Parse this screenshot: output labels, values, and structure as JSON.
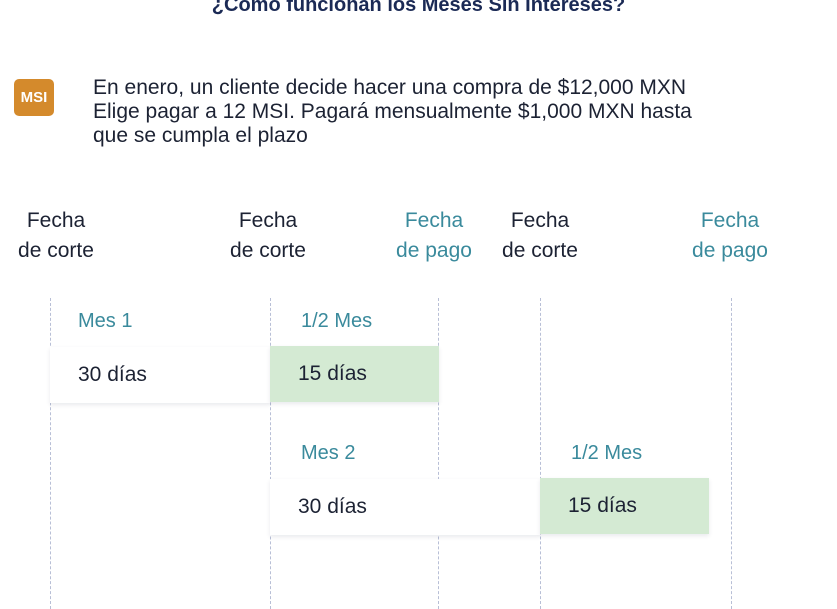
{
  "title": "¿Cómo funcionan los Meses Sin Intereses?",
  "badge": "MSI",
  "intro": [
    "En enero, un cliente decide hacer una compra de $12,000 MXN",
    "Elige pagar a 12 MSI. Pagará mensualmente $1,000 MXN hasta",
    "que se cumpla el plazo"
  ],
  "columns": [
    {
      "line1": "Fecha",
      "line2": "de corte"
    },
    {
      "line1": "Fecha",
      "line2": "de corte"
    },
    {
      "line1": "Fecha",
      "line2": "de pago"
    },
    {
      "line1": "Fecha",
      "line2": "de corte"
    },
    {
      "line1": "Fecha",
      "line2": "de pago"
    }
  ],
  "periods": [
    {
      "label": "Mes 1",
      "days": "30 días"
    },
    {
      "label": "1/2 Mes",
      "days": "15 días"
    },
    {
      "label": "Mes 2",
      "days": "30 días"
    },
    {
      "label": "1/2 Mes",
      "days": "15 días"
    }
  ],
  "colors": {
    "badge": "#d48a2c",
    "pago_text": "#3a8a9c",
    "grace_fill": "#d4ead3",
    "title": "#1b2a55"
  }
}
